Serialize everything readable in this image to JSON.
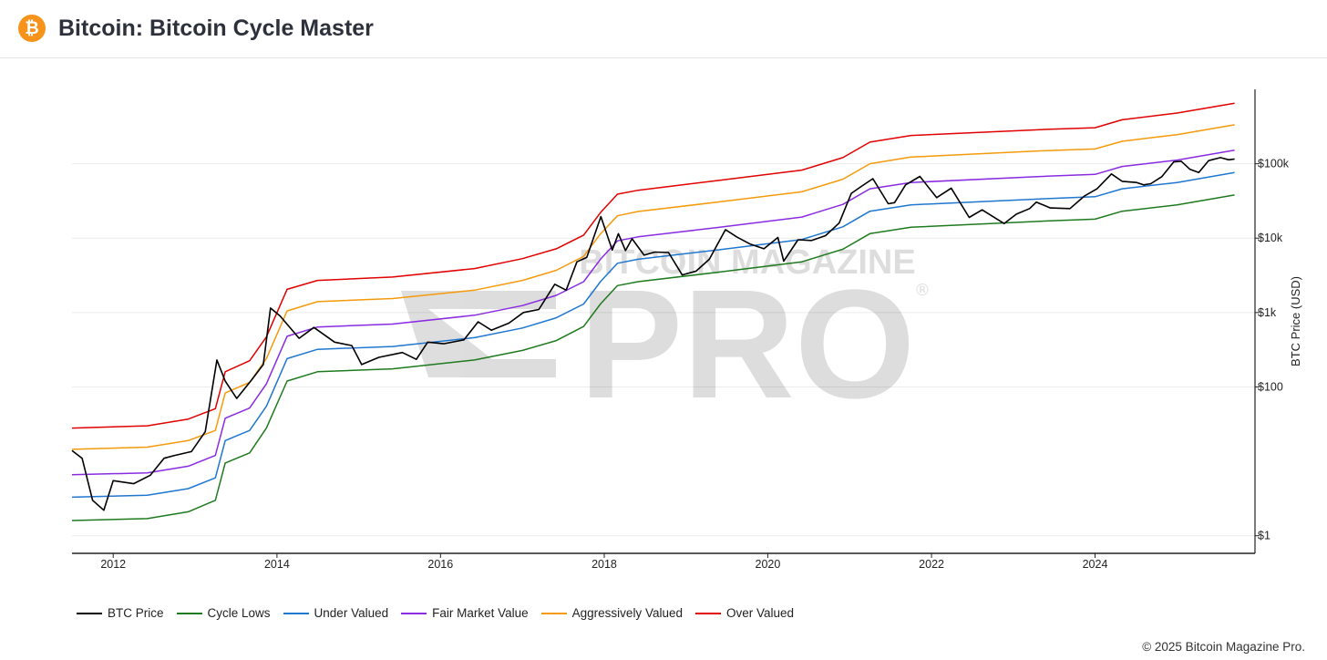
{
  "header": {
    "title": "Bitcoin: Bitcoin Cycle Master",
    "logo_icon": "bitcoin-icon",
    "logo_glyph": "₿",
    "logo_color": "#f7931a"
  },
  "watermark": {
    "line1": "BITCOIN MAGAZINE",
    "line2": "PRO",
    "mark": "®"
  },
  "copyright": "© 2025 Bitcoin Magazine Pro.",
  "chart_data": {
    "type": "line",
    "title": "Bitcoin: Bitcoin Cycle Master",
    "xlabel": "",
    "ylabel": "BTC Price (USD)",
    "y_scale": "log",
    "ylim": [
      0.58,
      1000000
    ],
    "xlim": [
      "2011-07-01",
      "2025-12-15"
    ],
    "x_ticks": [
      "2012",
      "2014",
      "2016",
      "2018",
      "2020",
      "2022",
      "2024"
    ],
    "y_ticks": [
      {
        "value": 1,
        "label": "$1"
      },
      {
        "value": 100,
        "label": "$100"
      },
      {
        "value": 1000,
        "label": "$1k"
      },
      {
        "value": 10000,
        "label": "$10k"
      },
      {
        "value": 100000,
        "label": "$100k"
      }
    ],
    "grid": true,
    "legend_position": "bottom-left",
    "series": [
      {
        "name": "BTC Price",
        "color": "#000000",
        "x": [
          "2011-07-01",
          "2011-08-15",
          "2011-10-01",
          "2011-11-20",
          "2012-01-01",
          "2012-04-01",
          "2012-06-15",
          "2012-08-15",
          "2012-10-01",
          "2012-12-15",
          "2013-02-15",
          "2013-04-08",
          "2013-05-15",
          "2013-07-05",
          "2013-09-15",
          "2013-11-01",
          "2013-12-03",
          "2014-01-15",
          "2014-04-10",
          "2014-06-15",
          "2014-09-15",
          "2014-12-01",
          "2015-01-14",
          "2015-04-01",
          "2015-07-15",
          "2015-09-15",
          "2015-11-05",
          "2016-01-15",
          "2016-04-15",
          "2016-06-17",
          "2016-08-15",
          "2016-11-01",
          "2017-01-05",
          "2017-03-15",
          "2017-05-25",
          "2017-07-15",
          "2017-09-01",
          "2017-10-15",
          "2017-12-17",
          "2018-02-06",
          "2018-03-05",
          "2018-04-06",
          "2018-05-05",
          "2018-06-28",
          "2018-08-15",
          "2018-10-15",
          "2018-12-15",
          "2019-02-15",
          "2019-04-15",
          "2019-06-26",
          "2019-08-15",
          "2019-10-15",
          "2019-12-15",
          "2020-02-15",
          "2020-03-12",
          "2020-05-15",
          "2020-07-15",
          "2020-09-15",
          "2020-11-15",
          "2021-01-08",
          "2021-02-15",
          "2021-04-14",
          "2021-06-22",
          "2021-07-20",
          "2021-09-07",
          "2021-11-10",
          "2022-01-24",
          "2022-03-30",
          "2022-06-18",
          "2022-08-15",
          "2022-11-21",
          "2023-01-15",
          "2023-03-15",
          "2023-04-14",
          "2023-06-15",
          "2023-09-11",
          "2023-11-15",
          "2024-01-10",
          "2024-03-14",
          "2024-05-01",
          "2024-07-05",
          "2024-08-05",
          "2024-09-06",
          "2024-10-25",
          "2024-12-17",
          "2025-01-20",
          "2025-02-28",
          "2025-04-08",
          "2025-05-22",
          "2025-07-14",
          "2025-08-20",
          "2025-09-15"
        ],
        "y": [
          14,
          11,
          3,
          2.2,
          5.5,
          5,
          6.5,
          11,
          12,
          13.5,
          25,
          230,
          120,
          70,
          130,
          200,
          1150,
          900,
          450,
          630,
          400,
          360,
          200,
          250,
          290,
          235,
          400,
          380,
          430,
          750,
          580,
          720,
          1000,
          1100,
          2400,
          2000,
          4800,
          5500,
          19500,
          6900,
          11500,
          6800,
          9800,
          5900,
          6500,
          6400,
          3200,
          3600,
          5200,
          13000,
          10400,
          8300,
          7200,
          10200,
          4900,
          9500,
          9300,
          10800,
          16000,
          40000,
          48000,
          63000,
          29000,
          30000,
          52000,
          67500,
          35000,
          47000,
          19000,
          24000,
          15700,
          21000,
          25000,
          30500,
          25500,
          25000,
          37000,
          46000,
          73000,
          58000,
          56000,
          52000,
          54000,
          67000,
          106000,
          108000,
          84000,
          76000,
          110000,
          121000,
          113000,
          116000
        ]
      },
      {
        "name": "Cycle Lows",
        "color": "#1f7a1f",
        "x": [
          "2011-07-01",
          "2012-06-01",
          "2012-12-01",
          "2013-04-01",
          "2013-05-15",
          "2013-09-01",
          "2013-11-15",
          "2014-02-15",
          "2014-07-01",
          "2015-06-01",
          "2016-06-01",
          "2017-01-01",
          "2017-06-01",
          "2017-10-01",
          "2017-12-15",
          "2018-03-01",
          "2018-06-01",
          "2019-06-01",
          "2020-06-01",
          "2020-12-01",
          "2021-04-01",
          "2021-10-01",
          "2023-06-01",
          "2024-01-01",
          "2024-05-01",
          "2025-01-01",
          "2025-09-15"
        ],
        "y": [
          1.6,
          1.7,
          2.1,
          3,
          9.5,
          13,
          28,
          120,
          160,
          175,
          230,
          310,
          420,
          650,
          1300,
          2300,
          2600,
          3500,
          4800,
          7100,
          11500,
          14000,
          17000,
          18000,
          23000,
          28000,
          38000
        ]
      },
      {
        "name": "Under Valued",
        "color": "#1f77d0",
        "x": [
          "2011-07-01",
          "2012-06-01",
          "2012-12-01",
          "2013-04-01",
          "2013-05-15",
          "2013-09-01",
          "2013-11-15",
          "2014-02-15",
          "2014-07-01",
          "2015-06-01",
          "2016-06-01",
          "2017-01-01",
          "2017-06-01",
          "2017-10-01",
          "2017-12-15",
          "2018-03-01",
          "2018-06-01",
          "2019-06-01",
          "2020-06-01",
          "2020-12-01",
          "2021-04-01",
          "2021-10-01",
          "2023-06-01",
          "2024-01-01",
          "2024-05-01",
          "2025-01-01",
          "2025-09-15"
        ],
        "y": [
          3.3,
          3.5,
          4.3,
          6,
          19,
          26,
          55,
          240,
          320,
          350,
          460,
          620,
          850,
          1300,
          2600,
          4600,
          5200,
          7000,
          9600,
          14200,
          23000,
          28000,
          34000,
          36000,
          46000,
          56000,
          76000
        ]
      },
      {
        "name": "Fair Market Value",
        "color": "#8a2be2",
        "x": [
          "2011-07-01",
          "2012-06-01",
          "2012-12-01",
          "2013-04-01",
          "2013-05-15",
          "2013-09-01",
          "2013-11-15",
          "2014-02-15",
          "2014-07-01",
          "2015-06-01",
          "2016-06-01",
          "2017-01-01",
          "2017-06-01",
          "2017-10-01",
          "2017-12-15",
          "2018-03-01",
          "2018-06-01",
          "2019-06-01",
          "2020-06-01",
          "2020-12-01",
          "2021-04-01",
          "2021-10-01",
          "2023-06-01",
          "2024-01-01",
          "2024-05-01",
          "2025-01-01",
          "2025-09-15"
        ],
        "y": [
          6.6,
          7,
          8.6,
          12,
          38,
          52,
          110,
          480,
          640,
          700,
          920,
          1240,
          1700,
          2600,
          5200,
          9200,
          10400,
          14000,
          19200,
          28400,
          46000,
          56000,
          68000,
          72000,
          92000,
          112000,
          152000
        ]
      },
      {
        "name": "Aggressively Valued",
        "color": "#f59a0c",
        "x": [
          "2011-07-01",
          "2012-06-01",
          "2012-12-01",
          "2013-04-01",
          "2013-05-15",
          "2013-09-01",
          "2013-11-15",
          "2014-02-15",
          "2014-07-01",
          "2015-06-01",
          "2016-06-01",
          "2017-01-01",
          "2017-06-01",
          "2017-10-01",
          "2017-12-15",
          "2018-03-01",
          "2018-06-01",
          "2019-06-01",
          "2020-06-01",
          "2020-12-01",
          "2021-04-01",
          "2021-10-01",
          "2023-06-01",
          "2024-01-01",
          "2024-05-01",
          "2025-01-01",
          "2025-09-15"
        ],
        "y": [
          14.5,
          15.5,
          19,
          26,
          83,
          115,
          240,
          1050,
          1400,
          1540,
          2000,
          2700,
          3700,
          5700,
          11400,
          20000,
          22800,
          30800,
          42000,
          62000,
          100000,
          123000,
          150000,
          158000,
          200000,
          246000,
          334000
        ]
      },
      {
        "name": "Over Valued",
        "color": "#e00000",
        "x": [
          "2011-07-01",
          "2012-06-01",
          "2012-12-01",
          "2013-04-01",
          "2013-05-15",
          "2013-09-01",
          "2013-11-15",
          "2014-02-15",
          "2014-07-01",
          "2015-06-01",
          "2016-06-01",
          "2017-01-01",
          "2017-06-01",
          "2017-10-01",
          "2017-12-15",
          "2018-03-01",
          "2018-06-01",
          "2019-06-01",
          "2020-06-01",
          "2020-12-01",
          "2021-04-01",
          "2021-10-01",
          "2023-06-01",
          "2024-01-01",
          "2024-05-01",
          "2025-01-01",
          "2025-09-15"
        ],
        "y": [
          28,
          30,
          37,
          51,
          160,
          225,
          470,
          2050,
          2700,
          3000,
          3900,
          5300,
          7200,
          11000,
          22000,
          39000,
          44000,
          60000,
          82000,
          121000,
          195000,
          240000,
          290000,
          305000,
          390000,
          480000,
          650000
        ]
      }
    ]
  }
}
